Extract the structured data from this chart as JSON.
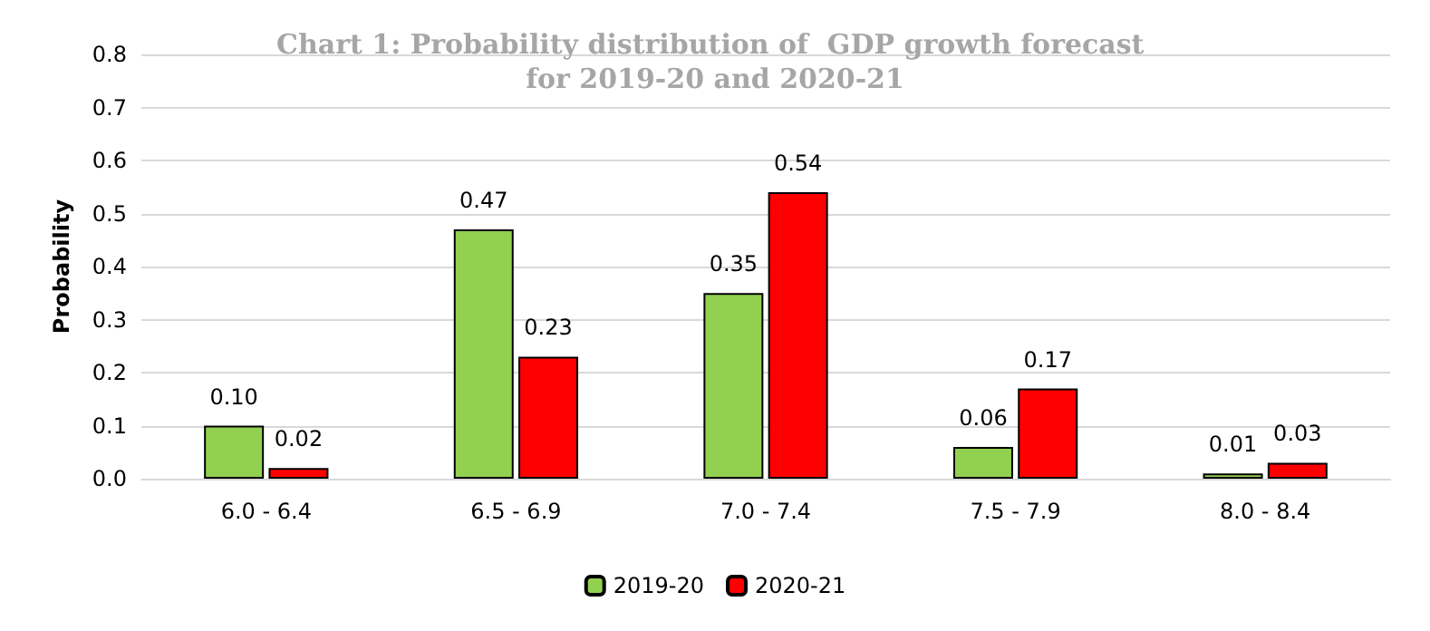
{
  "chart_data": {
    "type": "bar",
    "title": "Chart 1: Probability distribution of  GDP growth forecast for 2019-20 and 2020-21",
    "ylabel": "Probability",
    "categories": [
      "6.0 - 6.4",
      "6.5 - 6.9",
      "7.0 - 7.4",
      "7.5 - 7.9",
      "8.0 - 8.4"
    ],
    "series": [
      {
        "name": "2019-20",
        "color": "#92d050",
        "values": [
          0.1,
          0.47,
          0.35,
          0.06,
          0.01
        ],
        "value_labels": [
          "0.10",
          "0.47",
          "0.35",
          "0.06",
          "0.01"
        ]
      },
      {
        "name": "2020-21",
        "color": "#ff0000",
        "values": [
          0.02,
          0.23,
          0.54,
          0.17,
          0.03
        ],
        "value_labels": [
          "0.02",
          "0.23",
          "0.54",
          "0.17",
          "0.03"
        ]
      }
    ],
    "ylim": [
      0,
      0.8
    ],
    "yticks": [
      {
        "value": 0,
        "label": "0.0"
      },
      0.1,
      0.2,
      0.3,
      0.4,
      0.5,
      0.6,
      0.7,
      0.8
    ],
    "grid": "y",
    "legend": "bottom"
  }
}
